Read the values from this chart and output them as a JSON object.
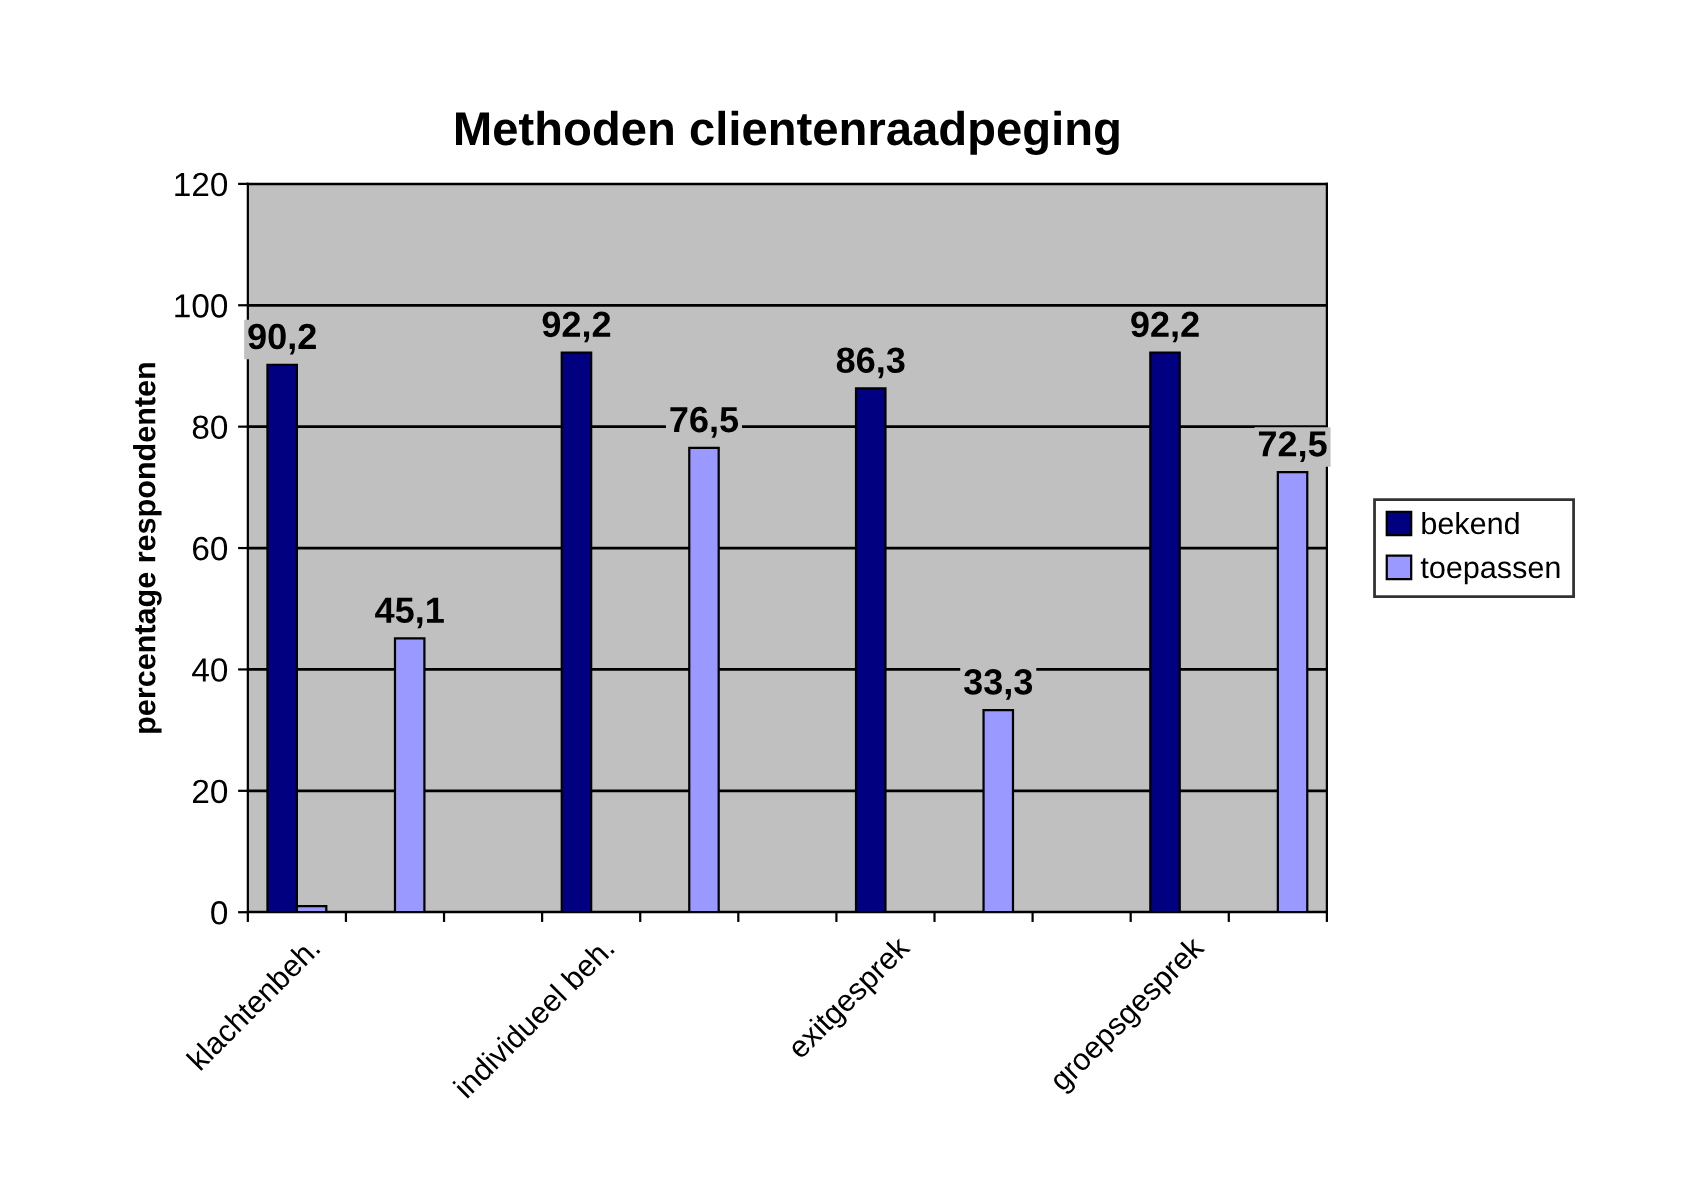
{
  "chart_data": {
    "type": "bar",
    "title": "Methoden clientenraadpeging",
    "ylabel": "percentage respondenten",
    "categories": [
      "klachtenbeh.",
      null,
      null,
      "individueel beh.",
      null,
      null,
      "exitgesprek",
      null,
      null,
      "groepsgesprek",
      null
    ],
    "series": [
      {
        "name": "bekend",
        "color": "#000080",
        "values": [
          90.2,
          null,
          null,
          92.2,
          null,
          null,
          86.3,
          null,
          null,
          92.2,
          null
        ],
        "value_labels": [
          "90,2",
          null,
          null,
          "92,2",
          null,
          null,
          "86,3",
          null,
          null,
          "92,2",
          null
        ]
      },
      {
        "name": "toepassen",
        "color": "#9999ff",
        "values": [
          1,
          45.1,
          null,
          null,
          76.5,
          null,
          null,
          33.3,
          null,
          null,
          72.5
        ],
        "value_labels": [
          null,
          "45,1",
          null,
          null,
          "76,5",
          null,
          null,
          "33,3",
          null,
          null,
          "72,5"
        ]
      }
    ],
    "ylim": [
      0,
      120
    ],
    "yticks": [
      0,
      20,
      40,
      60,
      80,
      100,
      120
    ],
    "grid": "y",
    "legend": "right"
  }
}
